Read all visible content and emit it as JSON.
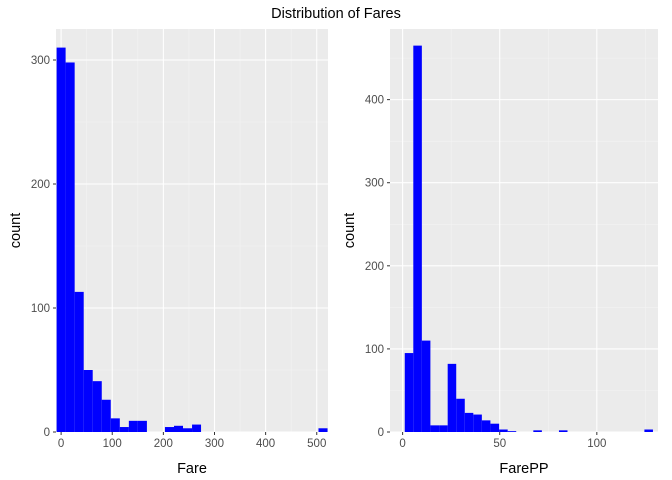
{
  "title": "Distribution of Fares",
  "chart_data": [
    {
      "type": "bar",
      "histogram": true,
      "bar_color": "#0000ff",
      "panel_color": "#ebebeb",
      "xlabel": "Fare",
      "ylabel": "count",
      "xlim": [
        -10,
        522
      ],
      "ylim": [
        0,
        325
      ],
      "x_ticks": [
        0,
        100,
        200,
        300,
        400,
        500
      ],
      "y_ticks": [
        0,
        100,
        200,
        300
      ],
      "grid": true,
      "bins": [
        {
          "x0": -8.8,
          "x1": 8.8,
          "count": 310
        },
        {
          "x0": 8.8,
          "x1": 26.5,
          "count": 298
        },
        {
          "x0": 26.5,
          "x1": 44.2,
          "count": 113
        },
        {
          "x0": 44.2,
          "x1": 61.8,
          "count": 50
        },
        {
          "x0": 61.8,
          "x1": 79.5,
          "count": 41
        },
        {
          "x0": 79.5,
          "x1": 97.1,
          "count": 26
        },
        {
          "x0": 97.1,
          "x1": 114.8,
          "count": 11
        },
        {
          "x0": 114.8,
          "x1": 132.5,
          "count": 4
        },
        {
          "x0": 132.5,
          "x1": 150.1,
          "count": 9
        },
        {
          "x0": 150.1,
          "x1": 167.8,
          "count": 9
        },
        {
          "x0": 203.1,
          "x1": 220.8,
          "count": 4
        },
        {
          "x0": 220.8,
          "x1": 238.4,
          "count": 5
        },
        {
          "x0": 238.4,
          "x1": 256.1,
          "count": 3
        },
        {
          "x0": 256.1,
          "x1": 273.7,
          "count": 6
        },
        {
          "x0": 503.4,
          "x1": 521.1,
          "count": 3
        }
      ]
    },
    {
      "type": "bar",
      "histogram": true,
      "bar_color": "#0000ff",
      "panel_color": "#ebebeb",
      "xlabel": "FarePP",
      "ylabel": "count",
      "xlim": [
        -6.5,
        131.5
      ],
      "ylim": [
        0,
        485
      ],
      "x_ticks": [
        0,
        50,
        100
      ],
      "y_ticks": [
        0,
        100,
        200,
        300,
        400
      ],
      "grid": true,
      "bins": [
        {
          "x0": 1.1,
          "x1": 5.5,
          "count": 95
        },
        {
          "x0": 5.5,
          "x1": 9.9,
          "count": 465
        },
        {
          "x0": 9.9,
          "x1": 14.3,
          "count": 110
        },
        {
          "x0": 14.3,
          "x1": 18.8,
          "count": 8
        },
        {
          "x0": 18.8,
          "x1": 23.2,
          "count": 8
        },
        {
          "x0": 23.2,
          "x1": 27.6,
          "count": 82
        },
        {
          "x0": 27.6,
          "x1": 32.0,
          "count": 40
        },
        {
          "x0": 32.0,
          "x1": 36.4,
          "count": 23
        },
        {
          "x0": 36.4,
          "x1": 40.8,
          "count": 21
        },
        {
          "x0": 40.8,
          "x1": 45.2,
          "count": 14
        },
        {
          "x0": 45.2,
          "x1": 49.7,
          "count": 10
        },
        {
          "x0": 49.7,
          "x1": 54.1,
          "count": 3
        },
        {
          "x0": 54.1,
          "x1": 58.5,
          "count": 1
        },
        {
          "x0": 67.3,
          "x1": 71.7,
          "count": 2
        },
        {
          "x0": 80.5,
          "x1": 84.9,
          "count": 2
        },
        {
          "x0": 124.5,
          "x1": 128.9,
          "count": 3
        }
      ]
    }
  ]
}
